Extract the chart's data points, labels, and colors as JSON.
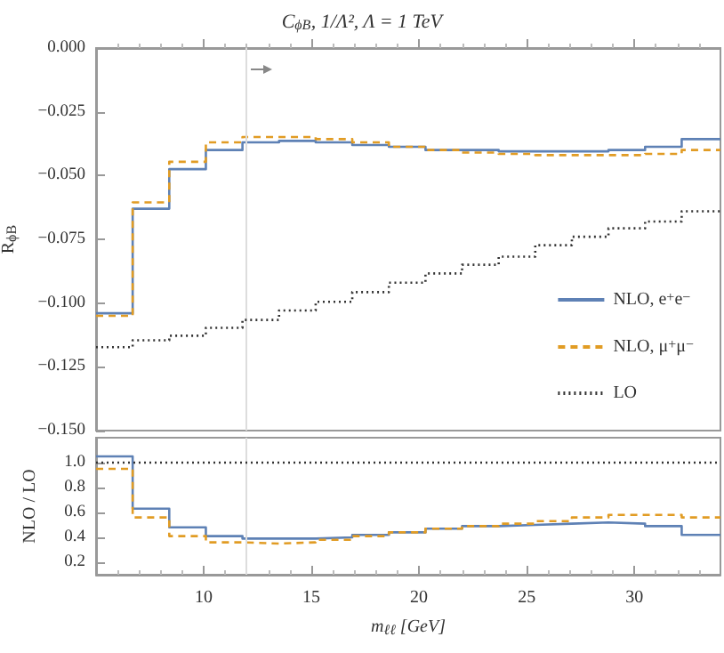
{
  "chart_data": [
    {
      "type": "step",
      "title": "C$_{ϕB}$, 1/Λ², Λ = 1 TeV",
      "ylabel": "R$_{ϕB}$",
      "x": [
        5,
        6.7,
        8.4,
        10.1,
        11.8,
        13.5,
        15.2,
        16.9,
        18.6,
        20.3,
        22,
        23.7,
        25.4,
        27.1,
        28.8,
        30.5,
        32.2,
        34
      ],
      "series": [
        {
          "name": "NLO, e$^{+}$e$^{−}$",
          "color": "#5e81b5",
          "line_style": "solid",
          "values": [
            -0.104,
            -0.063,
            -0.0475,
            -0.04,
            -0.037,
            -0.0364,
            -0.037,
            -0.038,
            -0.0387,
            -0.04,
            -0.04,
            -0.0405,
            -0.0405,
            -0.0405,
            -0.04,
            -0.0387,
            -0.0357,
            -0.0357
          ]
        },
        {
          "name": "NLO, μ$^{+}$μ$^{−}$",
          "color": "#e19c24",
          "line_style": "dashed",
          "values": [
            -0.105,
            -0.0605,
            -0.0446,
            -0.037,
            -0.0349,
            -0.0349,
            -0.0357,
            -0.037,
            -0.0387,
            -0.04,
            -0.041,
            -0.0415,
            -0.042,
            -0.042,
            -0.042,
            -0.0415,
            -0.04,
            -0.04
          ]
        },
        {
          "name": "LO",
          "color": "#333333",
          "line_style": "dotted",
          "values": [
            -0.1173,
            -0.1146,
            -0.1128,
            -0.1097,
            -0.1066,
            -0.1029,
            -0.0995,
            -0.0957,
            -0.092,
            -0.0884,
            -0.085,
            -0.0818,
            -0.0773,
            -0.074,
            -0.0707,
            -0.068,
            -0.064,
            -0.064
          ]
        }
      ],
      "xlim": [
        5,
        34
      ],
      "xticks": [
        10,
        15,
        20,
        25,
        30
      ],
      "ylim": [
        -0.15,
        0
      ],
      "yticks": [
        {
          "value": 0,
          "label": "0.000"
        },
        {
          "value": -0.025,
          "label": "−0.025"
        },
        {
          "value": -0.05,
          "label": "−0.050"
        },
        {
          "value": -0.075,
          "label": "−0.075"
        },
        {
          "value": -0.1,
          "label": "−0.100"
        },
        {
          "value": -0.125,
          "label": "−0.125"
        },
        {
          "value": -0.15,
          "label": "−0.150"
        }
      ],
      "ref_lines": [
        {
          "axis": "x",
          "value": 12,
          "color": "#dddddd"
        }
      ],
      "tick_labels": "y",
      "grid": false,
      "legend": "bottom right",
      "marker": "none"
    },
    {
      "type": "step",
      "ylabel": "NLO / LO",
      "xlabel": "m$_{ℓℓ}$ [GeV]",
      "x": [
        5,
        6.7,
        8.4,
        10.1,
        11.8,
        13.5,
        15.2,
        16.9,
        18.6,
        20.3,
        22,
        23.7,
        25.4,
        27.1,
        28.8,
        30.5,
        32.2,
        34
      ],
      "series": [
        {
          "color": "#5e81b5",
          "line_style": "solid",
          "values": [
            1.05,
            0.63,
            0.48,
            0.41,
            0.39,
            0.39,
            0.4,
            0.42,
            0.44,
            0.47,
            0.49,
            0.5,
            0.51,
            0.52,
            0.51,
            0.49,
            0.42,
            0.42
          ]
        },
        {
          "color": "#e19c24",
          "line_style": "dashed",
          "values": [
            0.95,
            0.56,
            0.41,
            0.36,
            0.35,
            0.36,
            0.38,
            0.41,
            0.44,
            0.47,
            0.49,
            0.51,
            0.53,
            0.56,
            0.58,
            0.58,
            0.56,
            0.56
          ]
        },
        {
          "color": "#333333",
          "line_style": "dotted",
          "values": [
            1,
            1,
            1,
            1,
            1,
            1,
            1,
            1,
            1,
            1,
            1,
            1,
            1,
            1,
            1,
            1,
            1,
            1
          ]
        }
      ],
      "xlim": [
        5,
        34
      ],
      "xticks": [
        10,
        15,
        20,
        25,
        30
      ],
      "ylim": [
        0.1,
        1.2
      ],
      "yticks": [
        0.2,
        0.4,
        0.6,
        0.8,
        {
          "value": 1,
          "label": "1.0"
        }
      ],
      "ref_lines": [
        {
          "axis": "x",
          "value": 12,
          "color": "#dddddd"
        }
      ],
      "grid": false,
      "legend": false,
      "marker": "none"
    }
  ]
}
